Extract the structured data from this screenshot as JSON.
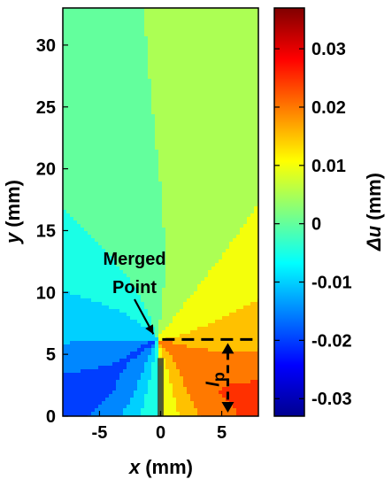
{
  "chart_data": {
    "type": "heatmap",
    "xlabel_var": "x",
    "xlabel_unit": "(mm)",
    "ylabel_var": "y",
    "ylabel_unit": "(mm)",
    "xlim": [
      -8,
      8
    ],
    "ylim": [
      0,
      33
    ],
    "x_ticks": [
      -5,
      0,
      5
    ],
    "x_tick_labels": [
      "-5",
      "0",
      "5"
    ],
    "y_ticks": [
      0,
      5,
      10,
      15,
      20,
      25,
      30
    ],
    "y_tick_labels": [
      "0",
      "5",
      "10",
      "15",
      "20",
      "25",
      "30"
    ],
    "colorbar": {
      "label_var": "Δu",
      "label_unit": "(mm)",
      "range": [
        -0.033,
        0.037
      ],
      "ticks": [
        0.03,
        0.02,
        0.01,
        0,
        -0.01,
        -0.02,
        -0.03
      ],
      "tick_labels": [
        "0.03",
        "0.02",
        "0.01",
        "0",
        "-0.01",
        "-0.02",
        "-0.03"
      ],
      "colormap": [
        "#00008f",
        "#0000ff",
        "#0080ff",
        "#00ffff",
        "#80ff80",
        "#ffff00",
        "#ff8000",
        "#ff0000",
        "#800000"
      ]
    },
    "annotations": {
      "merged_point_line1": "Merged",
      "merged_point_line2": "Point",
      "merged_point_xy": [
        -0.3,
        6.2
      ],
      "lp_symbol": "l",
      "lp_subscript": "p",
      "lp_x": 5.5,
      "lp_y_range": [
        0,
        6.2
      ]
    },
    "field_model": {
      "levels_step": 0.005,
      "left_far_field_value": 0.001,
      "right_far_field_value": 0.005,
      "crack_tip_value": 0.003
    }
  }
}
